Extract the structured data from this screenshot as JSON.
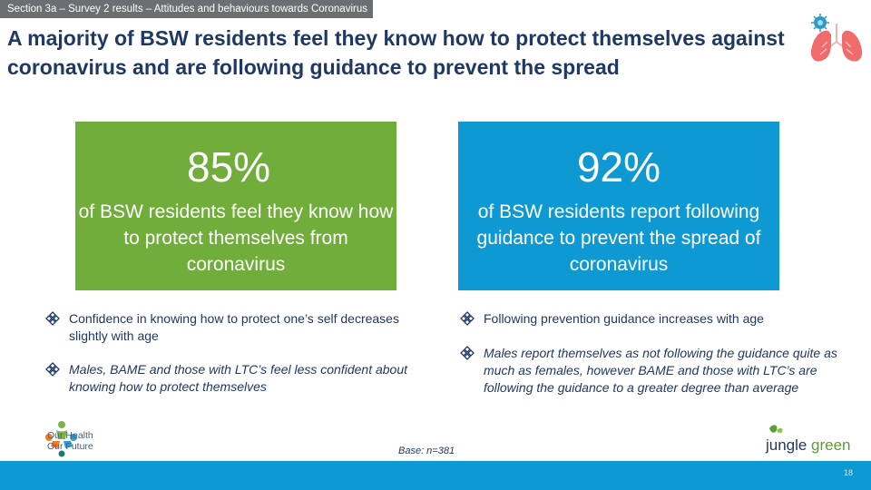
{
  "section_tag": "Section 3a – Survey 2 results – Attitudes and behaviours towards Coronavirus",
  "headline": "A majority of BSW residents feel they know how to protect themselves against coronavirus and are following guidance to prevent the spread",
  "stats": [
    {
      "percent": "85%",
      "description": "of BSW residents feel they know how to protect themselves from coronavirus",
      "color": "#70ad3a"
    },
    {
      "percent": "92%",
      "description": "of BSW residents report following guidance to prevent the spread of coronavirus",
      "color": "#0f99d3"
    }
  ],
  "bullets_left": [
    "Confidence in knowing how to protect one’s self decreases slightly with age",
    "Males, BAME and those with LTC’s feel less confident about knowing how to protect themselves"
  ],
  "bullets_right": [
    "Following prevention guidance increases with age",
    "Males report themselves as not following the guidance quite as much as females, however BAME and those with LTC’s are following the guidance to a greater degree than average"
  ],
  "logo_left": {
    "line1": "Our Health",
    "line2": "Our Future"
  },
  "logo_right": {
    "word1": "jungle",
    "word2": "green"
  },
  "base_note": "Base: n=381",
  "page_number": "18",
  "icons": {
    "bullet": "diamond-bullet-icon",
    "header": "lungs-virus-icon"
  },
  "colors": {
    "navy": "#1f3864",
    "green": "#70ad3a",
    "blue": "#0f99d3",
    "grey_tag": "#6d6e71"
  }
}
